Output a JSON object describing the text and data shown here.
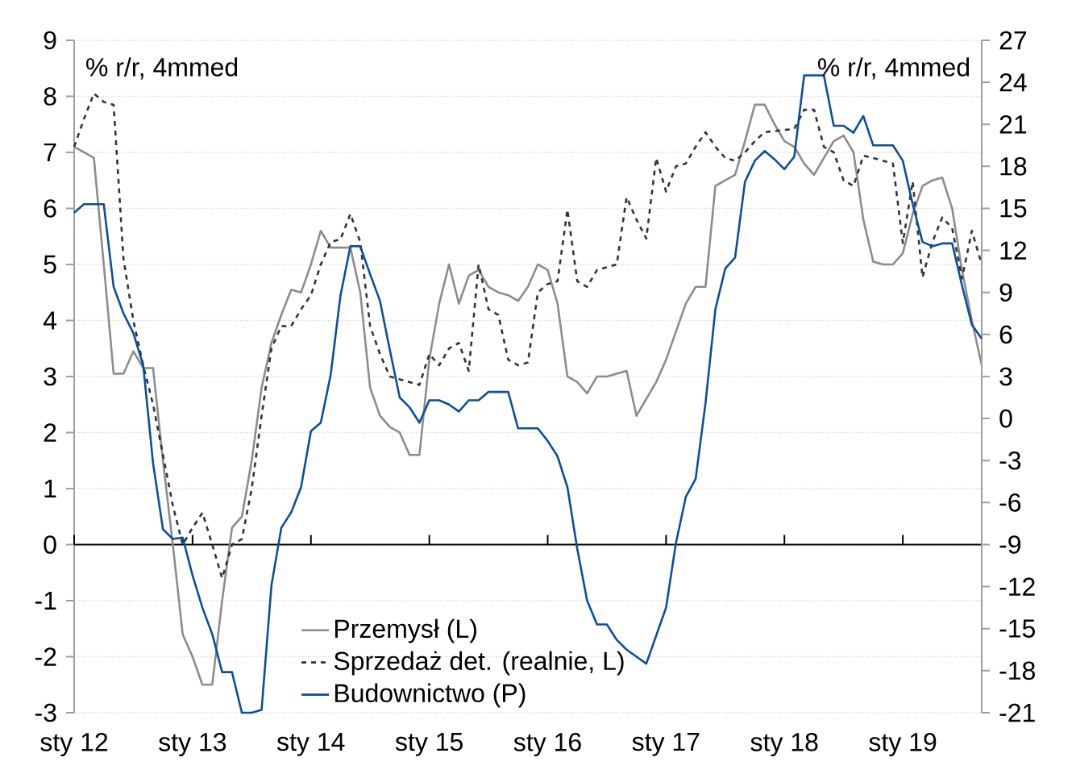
{
  "chart_data": {
    "type": "line",
    "ylabel": "% r/r, 4mmed",
    "y2label": "% r/r, 4mmed",
    "x": [
      "2012-01",
      "2012-02",
      "2012-03",
      "2012-04",
      "2012-05",
      "2012-06",
      "2012-07",
      "2012-08",
      "2012-09",
      "2012-10",
      "2012-11",
      "2012-12",
      "2013-01",
      "2013-02",
      "2013-03",
      "2013-04",
      "2013-05",
      "2013-06",
      "2013-07",
      "2013-08",
      "2013-09",
      "2013-10",
      "2013-11",
      "2013-12",
      "2014-01",
      "2014-02",
      "2014-03",
      "2014-04",
      "2014-05",
      "2014-06",
      "2014-07",
      "2014-08",
      "2014-09",
      "2014-10",
      "2014-11",
      "2014-12",
      "2015-01",
      "2015-02",
      "2015-03",
      "2015-04",
      "2015-05",
      "2015-06",
      "2015-07",
      "2015-08",
      "2015-09",
      "2015-10",
      "2015-11",
      "2015-12",
      "2016-01",
      "2016-02",
      "2016-03",
      "2016-04",
      "2016-05",
      "2016-06",
      "2016-07",
      "2016-08",
      "2016-09",
      "2016-10",
      "2016-11",
      "2016-12",
      "2017-01",
      "2017-02",
      "2017-03",
      "2017-04",
      "2017-05",
      "2017-06",
      "2017-07",
      "2017-08",
      "2017-09",
      "2017-10",
      "2017-11",
      "2017-12",
      "2018-01",
      "2018-02",
      "2018-03",
      "2018-04",
      "2018-05",
      "2018-06",
      "2018-07",
      "2018-08",
      "2018-09",
      "2018-10",
      "2018-11",
      "2018-12",
      "2019-01",
      "2019-02",
      "2019-03",
      "2019-04",
      "2019-05",
      "2019-06",
      "2019-07",
      "2019-08",
      "2019-09"
    ],
    "series": [
      {
        "name": "Przemysł (L)",
        "color": "#8c8c8c",
        "line_style": "solid",
        "values": [
          7.1,
          7.0,
          6.9,
          5.0,
          3.05,
          3.05,
          3.45,
          3.15,
          3.15,
          1.5,
          0.0,
          -1.6,
          -2.0,
          -2.5,
          -2.5,
          -1.0,
          0.3,
          0.5,
          1.5,
          2.8,
          3.6,
          4.1,
          4.55,
          4.5,
          5.0,
          5.6,
          5.3,
          5.3,
          5.3,
          4.5,
          2.8,
          2.3,
          2.1,
          2.0,
          1.6,
          1.6,
          3.3,
          4.3,
          5.0,
          4.3,
          4.8,
          4.9,
          4.6,
          4.5,
          4.45,
          4.35,
          4.6,
          5.0,
          4.9,
          4.3,
          3.0,
          2.9,
          2.7,
          3.0,
          3.0,
          3.05,
          3.1,
          2.3,
          2.6,
          2.9,
          3.3,
          3.8,
          4.3,
          4.6,
          4.6,
          6.4,
          6.5,
          6.6,
          7.2,
          7.85,
          7.85,
          7.5,
          7.2,
          7.1,
          6.8,
          6.6,
          6.9,
          7.2,
          7.3,
          7.0,
          5.8,
          5.05,
          5.0,
          5.0,
          5.2,
          5.9,
          6.4,
          6.5,
          6.55,
          6.0,
          4.9,
          4.0,
          3.2
        ]
      },
      {
        "name": "Sprzedaż det. (realnie, L)",
        "color": "#333333",
        "line_style": "dashed",
        "values": [
          7.1,
          7.6,
          8.05,
          7.9,
          7.85,
          5.1,
          4.0,
          3.2,
          2.5,
          1.6,
          0.7,
          0.0,
          0.3,
          0.57,
          0.0,
          -0.6,
          0.0,
          0.1,
          1.0,
          2.3,
          3.5,
          3.9,
          3.9,
          4.2,
          4.45,
          5.0,
          5.4,
          5.45,
          5.9,
          5.4,
          3.9,
          3.4,
          3.0,
          2.95,
          2.9,
          2.85,
          3.4,
          3.2,
          3.5,
          3.6,
          3.1,
          5.0,
          4.2,
          4.1,
          3.3,
          3.2,
          3.25,
          4.5,
          4.65,
          4.7,
          5.98,
          4.7,
          4.6,
          4.9,
          4.95,
          5.0,
          6.2,
          5.8,
          5.46,
          6.9,
          6.3,
          6.75,
          6.8,
          7.1,
          7.36,
          7.1,
          6.9,
          6.85,
          7.0,
          7.2,
          7.36,
          7.38,
          7.4,
          7.42,
          7.76,
          7.76,
          7.1,
          7.0,
          6.5,
          6.4,
          6.94,
          6.9,
          6.85,
          6.8,
          5.38,
          6.48,
          4.77,
          5.4,
          5.84,
          5.65,
          4.75,
          5.6,
          5.0
        ]
      },
      {
        "name": "Budownictwo (P)",
        "color": "#0b4e9a",
        "line_style": "solid",
        "axis": "y2",
        "values": [
          14.7,
          15.3,
          15.3,
          15.3,
          9.4,
          7.5,
          6.1,
          3.8,
          -3.2,
          -7.9,
          -8.6,
          -8.5,
          -11.2,
          -13.5,
          -15.4,
          -18.1,
          -18.1,
          -21,
          -21,
          -20.8,
          -11.9,
          -7.8,
          -6.7,
          -4.9,
          -0.9,
          -0.3,
          3.1,
          8.8,
          12.3,
          12.3,
          10.3,
          8.4,
          4.9,
          1.5,
          0.8,
          -0.3,
          1.3,
          1.3,
          1.0,
          0.5,
          1.3,
          1.3,
          1.9,
          1.9,
          1.9,
          -0.7,
          -0.7,
          -0.7,
          -1.6,
          -2.7,
          -4.9,
          -9.3,
          -13,
          -14.7,
          -14.7,
          -15.8,
          -16.5,
          -17,
          -17.5,
          -15.5,
          -13.5,
          -8.9,
          -5.6,
          -4.3,
          1.1,
          7.8,
          10.7,
          11.5,
          16.9,
          18.4,
          19.1,
          18.5,
          17.8,
          18.7,
          24.5,
          24.5,
          24.5,
          20.9,
          20.9,
          20.4,
          21.6,
          19.5,
          19.5,
          19.5,
          18.4,
          15.3,
          12.6,
          12.3,
          12.5,
          12.5,
          9.5,
          6.7,
          5.7
        ]
      }
    ],
    "xlim": [
      "2012-01",
      "2019-09"
    ],
    "xticks": [
      {
        "value": "2012-01",
        "label": "sty 12"
      },
      {
        "value": "2013-01",
        "label": "sty 13"
      },
      {
        "value": "2014-01",
        "label": "sty 14"
      },
      {
        "value": "2015-01",
        "label": "sty 15"
      },
      {
        "value": "2016-01",
        "label": "sty 16"
      },
      {
        "value": "2017-01",
        "label": "sty 17"
      },
      {
        "value": "2018-01",
        "label": "sty 18"
      },
      {
        "value": "2019-01",
        "label": "sty 19"
      }
    ],
    "ylim": [
      -3,
      9
    ],
    "yticks": [
      -3,
      -2,
      -1,
      0,
      1,
      2,
      3,
      4,
      5,
      6,
      7,
      8,
      9
    ],
    "y2lim": [
      -21,
      27
    ],
    "y2ticks": [
      -21,
      -18,
      -15,
      -12,
      -9,
      -6,
      -3,
      0,
      3,
      6,
      9,
      12,
      15,
      18,
      21,
      24,
      27
    ],
    "grid": "y",
    "legend": "bottom",
    "marker": "none"
  }
}
